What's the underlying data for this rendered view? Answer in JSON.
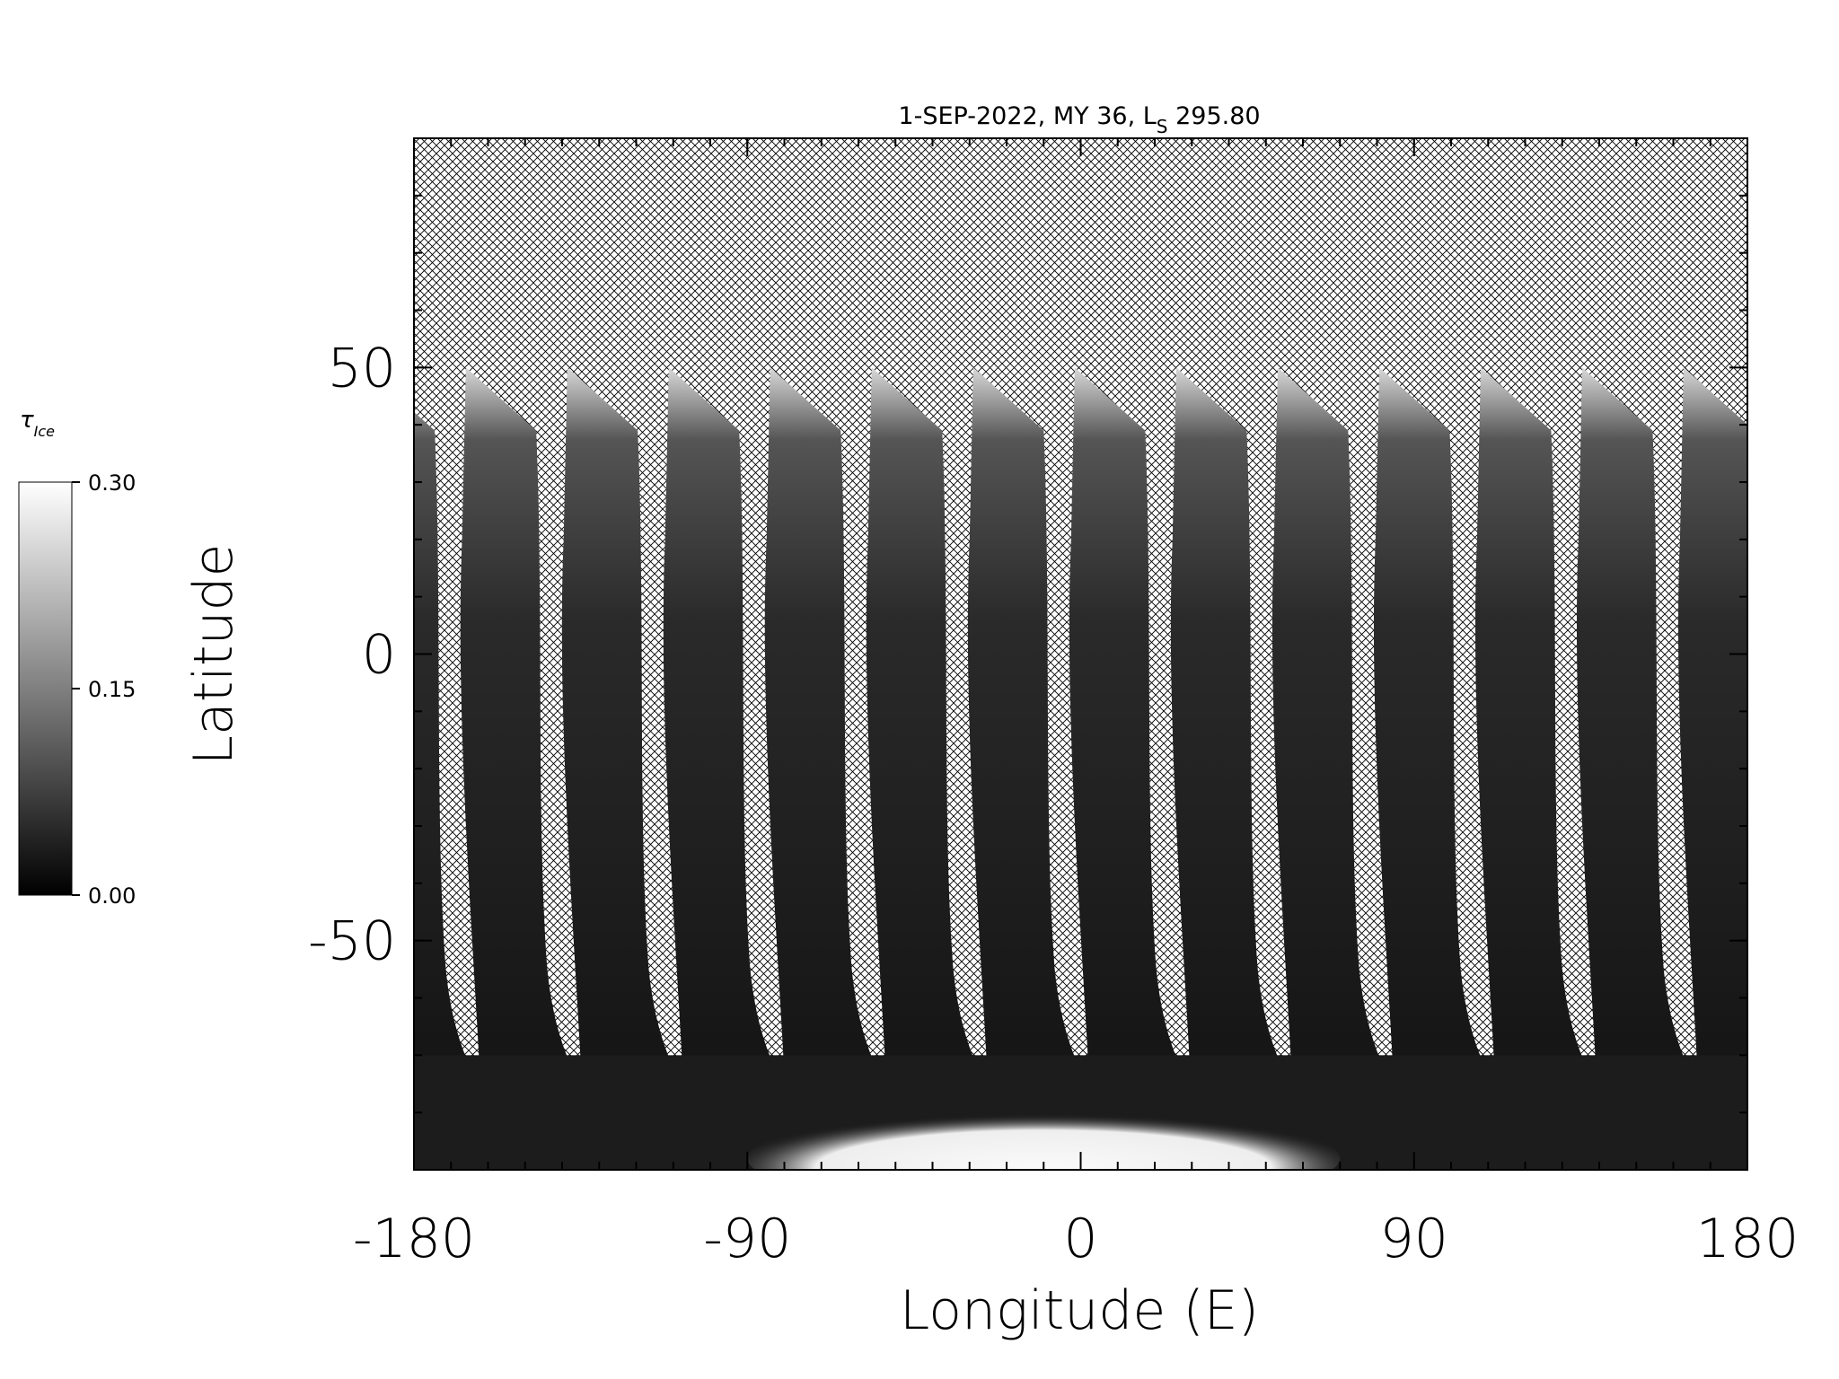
{
  "chart_data": {
    "type": "map",
    "title": {
      "prefix": "1-SEP-2022, MY 36,  L",
      "subscript": "S",
      "suffix": " 295.80"
    },
    "x_label": "Longitude (E)",
    "y_label": "Latitude",
    "xlim": [
      -180,
      180
    ],
    "ylim": [
      -90,
      90
    ],
    "xticks": [
      -180,
      -90,
      0,
      90,
      180
    ],
    "yticks": [
      -50,
      0,
      50
    ],
    "xminorticks": [
      -180,
      -170,
      -160,
      -150,
      -140,
      -130,
      -120,
      -110,
      -100,
      -90,
      -80,
      -70,
      -60,
      -50,
      -40,
      -30,
      -20,
      -10,
      0,
      10,
      20,
      30,
      40,
      50,
      60,
      70,
      80,
      90,
      100,
      110,
      120,
      130,
      140,
      150,
      160,
      170,
      180
    ],
    "yminorticks": [
      -90,
      -80,
      -70,
      -60,
      -50,
      -40,
      -30,
      -20,
      -10,
      0,
      10,
      20,
      30,
      40,
      50,
      60,
      70,
      80,
      90
    ],
    "colorbar": {
      "label": "τ",
      "label_subscript": "Ice",
      "clim": [
        0,
        0.3
      ],
      "colors": [
        "#000000",
        "#ffffff"
      ],
      "ticks": [
        {
          "value": 0,
          "label": "0.00"
        },
        {
          "value": 0.15,
          "label": "0.15"
        },
        {
          "value": 0.3,
          "label": "0.30"
        }
      ]
    }
  }
}
